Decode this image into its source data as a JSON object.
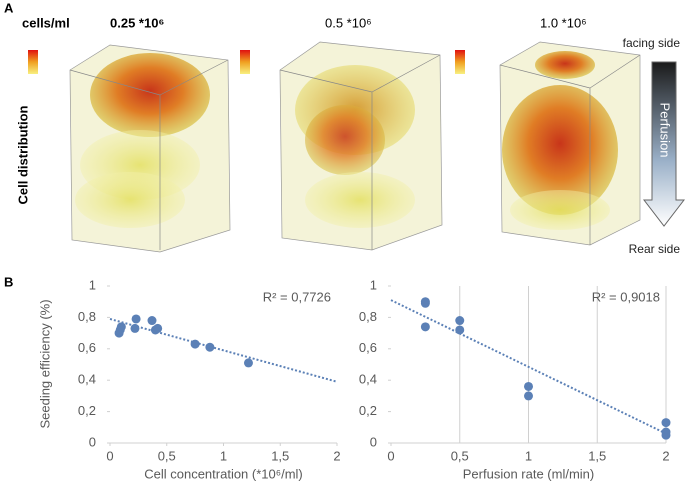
{
  "panel_a": {
    "label": "A",
    "unit": "cells/ml",
    "concentrations": [
      "0.25 *10⁶",
      "0.5 *10⁶",
      "1.0 *10⁶"
    ],
    "row_label": "Cell distribution",
    "facing": "facing side",
    "arrow": "Perfusion",
    "rear": "Rear side"
  },
  "panel_b": {
    "label": "B"
  },
  "chart_data": [
    {
      "type": "scatter",
      "ylabel": "Seeding efficiency (%)",
      "xlabel": "Cell concentration (*10⁶/ml)",
      "color": "#5b80b6",
      "x": [
        0.08,
        0.09,
        0.1,
        0.22,
        0.23,
        0.37,
        0.4,
        0.42,
        0.75,
        0.88,
        1.22
      ],
      "values": [
        0.7,
        0.72,
        0.74,
        0.73,
        0.79,
        0.78,
        0.72,
        0.73,
        0.63,
        0.61,
        0.51
      ],
      "trendline": {
        "x": [
          0,
          2
        ],
        "values": [
          0.79,
          0.39
        ]
      },
      "annotation": "R² = 0,7726",
      "xlim": [
        0,
        2
      ],
      "ylim": [
        0,
        1
      ],
      "xticks": [
        0,
        {
          "value": 0.5,
          "label": "0,5"
        },
        1,
        {
          "value": 1.5,
          "label": "1,5"
        },
        2
      ],
      "yticks": [
        0,
        {
          "value": 0.2,
          "label": "0,2"
        },
        {
          "value": 0.4,
          "label": "0,4"
        },
        {
          "value": 0.6,
          "label": "0,6"
        },
        {
          "value": 0.8,
          "label": "0,8"
        },
        1
      ],
      "grid": "none"
    },
    {
      "type": "scatter",
      "xlabel": "Perfusion rate (ml/min)",
      "color": "#5b80b6",
      "x": [
        0.25,
        0.25,
        0.25,
        0.5,
        0.5,
        1,
        1,
        2,
        2,
        2
      ],
      "values": [
        0.9,
        0.89,
        0.74,
        0.78,
        0.72,
        0.36,
        0.3,
        0.13,
        0.07,
        0.05
      ],
      "trendline": {
        "x": [
          0,
          2
        ],
        "values": [
          0.91,
          0.06
        ]
      },
      "annotation": "R² = 0,9018",
      "xlim": [
        0,
        2
      ],
      "ylim": [
        0,
        1
      ],
      "xticks": [
        0,
        {
          "value": 0.5,
          "label": "0,5"
        },
        1,
        {
          "value": 1.5,
          "label": "1,5"
        },
        2
      ],
      "yticks": [
        0,
        {
          "value": 0.2,
          "label": "0,2"
        },
        {
          "value": 0.4,
          "label": "0,4"
        },
        {
          "value": 0.6,
          "label": "0,6"
        },
        {
          "value": 0.8,
          "label": "0,8"
        },
        1
      ],
      "grid": "x"
    }
  ]
}
